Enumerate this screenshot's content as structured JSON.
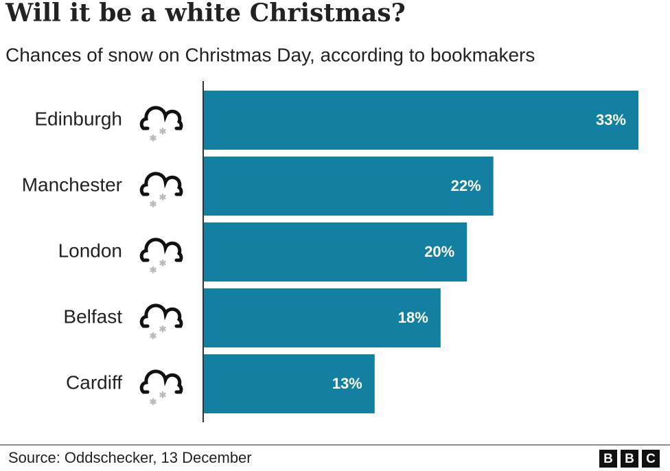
{
  "chart_data": {
    "type": "bar",
    "orientation": "horizontal",
    "title": "Will it be a white Christmas?",
    "subtitle": "Chances of snow on Christmas Day, according to bookmakers",
    "categories": [
      "Edinburgh",
      "Manchester",
      "London",
      "Belfast",
      "Cardiff"
    ],
    "values": [
      33,
      22,
      20,
      18,
      13
    ],
    "value_labels": [
      "33%",
      "22%",
      "20%",
      "18%",
      "13%"
    ],
    "color": "#1380a1",
    "xlim": [
      0,
      33
    ],
    "source": "Source: Oddschecker, 13 December",
    "logo": [
      "B",
      "B",
      "C"
    ]
  }
}
